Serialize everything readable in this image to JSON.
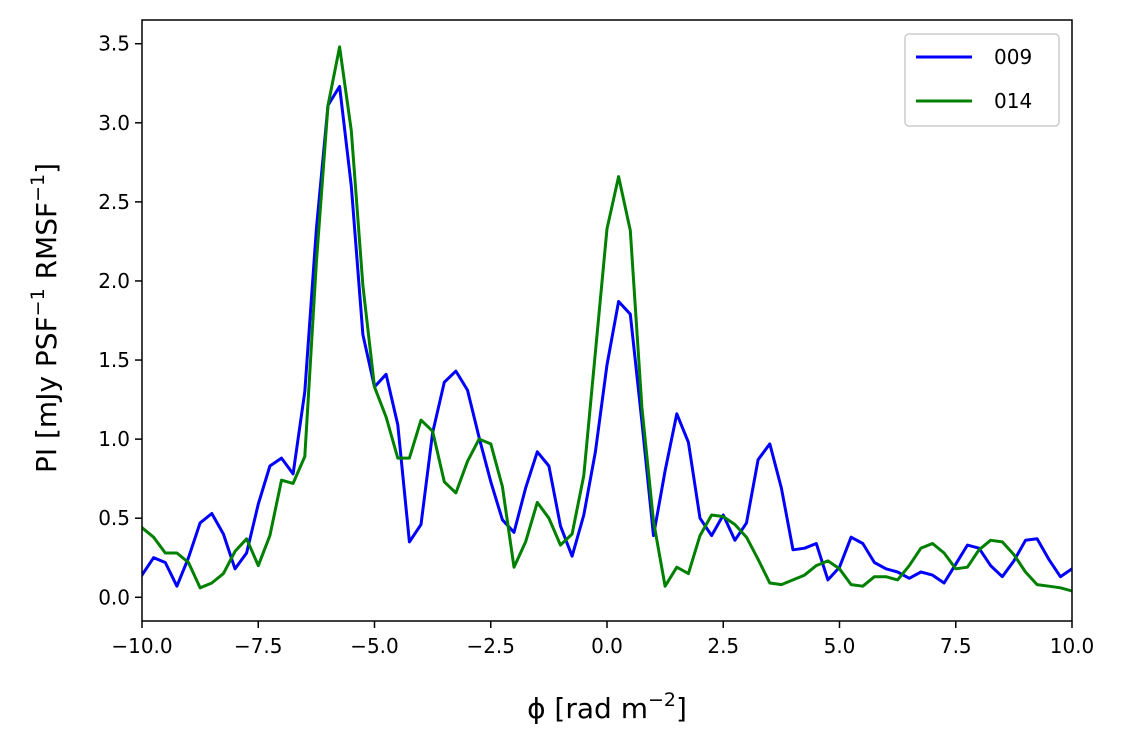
{
  "chart_data": {
    "type": "line",
    "xlabel": "ϕ [rad m",
    "xlabel_sup": "−2",
    "xlabel_end": "]",
    "ylabel": "PI [mJy PSF",
    "ylabel_sup1": "−1",
    "ylabel_mid": " RMSF",
    "ylabel_sup2": "−1",
    "ylabel_end": "]",
    "xlim": [
      -10,
      10
    ],
    "ylim": [
      -0.15,
      3.65
    ],
    "xticks": [
      -10.0,
      -7.5,
      -5.0,
      -2.5,
      0.0,
      2.5,
      5.0,
      7.5,
      10.0
    ],
    "xtick_labels": [
      "−10.0",
      "−7.5",
      "−5.0",
      "−2.5",
      "0.0",
      "2.5",
      "5.0",
      "7.5",
      "10.0"
    ],
    "yticks": [
      0.0,
      0.5,
      1.0,
      1.5,
      2.0,
      2.5,
      3.0,
      3.5
    ],
    "ytick_labels": [
      "0.0",
      "0.5",
      "1.0",
      "1.5",
      "2.0",
      "2.5",
      "3.0",
      "3.5"
    ],
    "grid": false,
    "legend_position": "top-right",
    "x": [
      -10.0,
      -9.75,
      -9.5,
      -9.25,
      -9.0,
      -8.75,
      -8.5,
      -8.25,
      -8.0,
      -7.75,
      -7.5,
      -7.25,
      -7.0,
      -6.75,
      -6.5,
      -6.25,
      -6.0,
      -5.75,
      -5.5,
      -5.25,
      -5.0,
      -4.75,
      -4.5,
      -4.25,
      -4.0,
      -3.75,
      -3.5,
      -3.25,
      -3.0,
      -2.75,
      -2.5,
      -2.25,
      -2.0,
      -1.75,
      -1.5,
      -1.25,
      -1.0,
      -0.75,
      -0.5,
      -0.25,
      0.0,
      0.25,
      0.5,
      0.75,
      1.0,
      1.25,
      1.5,
      1.75,
      2.0,
      2.25,
      2.5,
      2.75,
      3.0,
      3.25,
      3.5,
      3.75,
      4.0,
      4.25,
      4.5,
      4.75,
      5.0,
      5.25,
      5.5,
      5.75,
      6.0,
      6.25,
      6.5,
      6.75,
      7.0,
      7.25,
      7.5,
      7.75,
      8.0,
      8.25,
      8.5,
      8.75,
      9.0,
      9.25,
      9.5,
      9.75,
      10.0
    ],
    "series": [
      {
        "name": "009",
        "color": "#0000ff",
        "values": [
          0.14,
          0.25,
          0.22,
          0.07,
          0.25,
          0.47,
          0.53,
          0.4,
          0.18,
          0.28,
          0.59,
          0.83,
          0.88,
          0.78,
          1.3,
          2.33,
          3.11,
          3.23,
          2.6,
          1.66,
          1.33,
          1.41,
          1.09,
          0.35,
          0.46,
          1.04,
          1.36,
          1.43,
          1.31,
          1.01,
          0.73,
          0.49,
          0.41,
          0.69,
          0.92,
          0.83,
          0.45,
          0.26,
          0.52,
          0.92,
          1.47,
          1.87,
          1.79,
          1.11,
          0.39,
          0.8,
          1.16,
          0.98,
          0.5,
          0.39,
          0.52,
          0.36,
          0.47,
          0.87,
          0.97,
          0.69,
          0.3,
          0.31,
          0.34,
          0.11,
          0.19,
          0.38,
          0.34,
          0.22,
          0.18,
          0.16,
          0.12,
          0.16,
          0.14,
          0.09,
          0.21,
          0.33,
          0.31,
          0.2,
          0.13,
          0.23,
          0.36,
          0.37,
          0.24,
          0.13,
          0.18
        ]
      },
      {
        "name": "014",
        "color": "#008000",
        "values": [
          0.44,
          0.38,
          0.28,
          0.28,
          0.22,
          0.06,
          0.09,
          0.15,
          0.29,
          0.37,
          0.2,
          0.39,
          0.74,
          0.72,
          0.89,
          2.12,
          3.11,
          3.48,
          2.95,
          1.97,
          1.33,
          1.14,
          0.88,
          0.88,
          1.12,
          1.05,
          0.73,
          0.66,
          0.86,
          1.0,
          0.97,
          0.7,
          0.19,
          0.35,
          0.6,
          0.5,
          0.33,
          0.4,
          0.77,
          1.55,
          2.33,
          2.66,
          2.32,
          1.2,
          0.48,
          0.07,
          0.19,
          0.15,
          0.39,
          0.52,
          0.51,
          0.46,
          0.38,
          0.24,
          0.09,
          0.08,
          0.11,
          0.14,
          0.2,
          0.23,
          0.18,
          0.08,
          0.07,
          0.13,
          0.13,
          0.11,
          0.2,
          0.31,
          0.34,
          0.28,
          0.18,
          0.19,
          0.3,
          0.36,
          0.35,
          0.27,
          0.16,
          0.08,
          0.07,
          0.06,
          0.04
        ]
      }
    ]
  }
}
